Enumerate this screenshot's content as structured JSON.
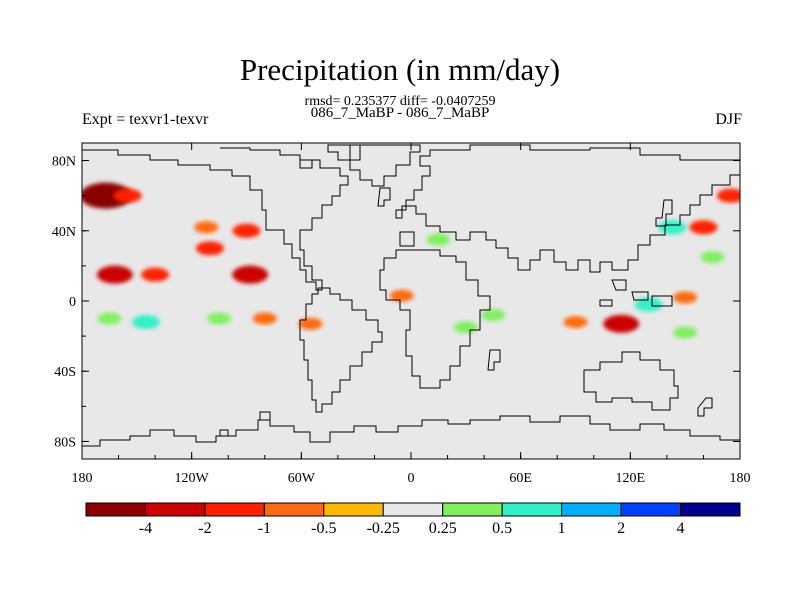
{
  "title": "Precipitation (in mm/day)",
  "stats": "rmsd= 0.235377 diff= -0.0407259",
  "cases": "086_7_MaBP - 086_7_MaBP",
  "experiment": "Expt = texvr1-texvr",
  "season": "DJF",
  "map": {
    "projection": "cylindrical-equidistant",
    "lon_range": [
      -180,
      180
    ],
    "lat_range": [
      -90,
      90
    ],
    "background_value_class": "-0.25 to 0.25",
    "lat_tick_labels": [
      {
        "lat": 80,
        "label": "80N"
      },
      {
        "lat": 40,
        "label": "40N"
      },
      {
        "lat": 0,
        "label": "0"
      },
      {
        "lat": -40,
        "label": "40S"
      },
      {
        "lat": -80,
        "label": "80S"
      }
    ],
    "lon_tick_labels": [
      {
        "lon": -180,
        "label": "180"
      },
      {
        "lon": -120,
        "label": "120W"
      },
      {
        "lon": -60,
        "label": "60W"
      },
      {
        "lon": 0,
        "label": "0"
      },
      {
        "lon": 60,
        "label": "60E"
      },
      {
        "lon": 120,
        "label": "120E"
      },
      {
        "lon": 180,
        "label": "180"
      }
    ]
  },
  "colorbar": {
    "colors": [
      "#8b0000",
      "#cc0000",
      "#ff2000",
      "#ff6a10",
      "#ffb800",
      "#e8e8e8",
      "#80f060",
      "#30f0c8",
      "#00b0ff",
      "#0040ff",
      "#000090"
    ],
    "labels": [
      "-4",
      "-2",
      "-1",
      "-0.5",
      "-0.25",
      "0.25",
      "0.5",
      "1",
      "2",
      "4"
    ]
  },
  "anomalies": [
    {
      "lon": -167,
      "lat": 60,
      "value": -4
    },
    {
      "lon": -155,
      "lat": 60,
      "value": -1
    },
    {
      "lon": -162,
      "lat": 15,
      "value": -2
    },
    {
      "lon": -140,
      "lat": 15,
      "value": -1
    },
    {
      "lon": -110,
      "lat": 30,
      "value": -1
    },
    {
      "lon": -90,
      "lat": 40,
      "value": -1
    },
    {
      "lon": -88,
      "lat": 15,
      "value": -2
    },
    {
      "lon": -112,
      "lat": 42,
      "value": -0.5
    },
    {
      "lon": -165,
      "lat": -10,
      "value": 0.5
    },
    {
      "lon": -145,
      "lat": -12,
      "value": 1
    },
    {
      "lon": -105,
      "lat": -10,
      "value": 0.5
    },
    {
      "lon": -80,
      "lat": -10,
      "value": -0.5
    },
    {
      "lon": -55,
      "lat": -13,
      "value": -0.5
    },
    {
      "lon": 115,
      "lat": -13,
      "value": -2
    },
    {
      "lon": 90,
      "lat": -12,
      "value": -0.5
    },
    {
      "lon": 130,
      "lat": -2,
      "value": 1
    },
    {
      "lon": 150,
      "lat": -18,
      "value": 0.5
    },
    {
      "lon": 160,
      "lat": 42,
      "value": -1
    },
    {
      "lon": 175,
      "lat": 60,
      "value": -1
    },
    {
      "lon": 143,
      "lat": 42,
      "value": 1
    },
    {
      "lon": 165,
      "lat": 25,
      "value": 0.5
    },
    {
      "lon": 150,
      "lat": 2,
      "value": -0.5
    },
    {
      "lon": 30,
      "lat": -15,
      "value": 0.5
    },
    {
      "lon": 15,
      "lat": 35,
      "value": 0.5
    },
    {
      "lon": -5,
      "lat": 3,
      "value": -0.5
    },
    {
      "lon": 45,
      "lat": -8,
      "value": 0.5
    }
  ]
}
